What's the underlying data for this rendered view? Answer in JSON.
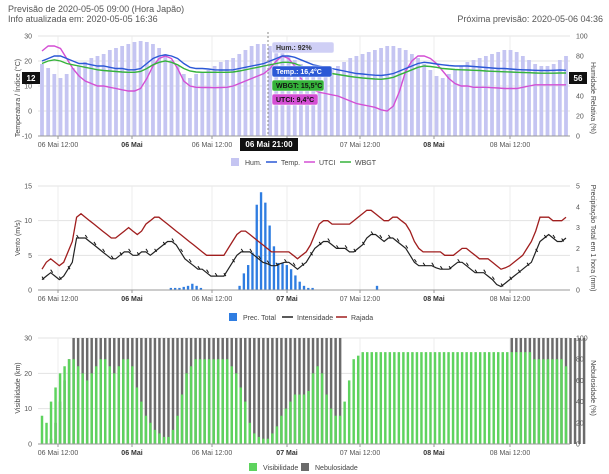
{
  "header": {
    "forecast": "Previsão de 2020-05-05 09:00 (Hora Japão)",
    "updated": "Info atualizada em: 2020-05-05 16:36",
    "next": "Próxima previsão: 2020-05-06 04:36"
  },
  "x_ticks": [
    "06 Mai 12:00",
    "06 Mai",
    "06 Mai 12:00",
    "07 Mai",
    "07 Mai 12:00",
    "08 Mai",
    "08 Mai 12:00"
  ],
  "x_ticks_bold": [
    false,
    true,
    false,
    true,
    false,
    true,
    false
  ],
  "colors": {
    "humidity": "#c5c5f2",
    "temp": "#2b58d6",
    "utci": "#d44fd4",
    "wbgt": "#35b33a",
    "precip": "#2f7de1",
    "intensity": "#222222",
    "gust": "#a01e1e",
    "visibility": "#5ed35e",
    "cloud": "#6b6b6b"
  },
  "chart_data": [
    {
      "type": "line",
      "ylabel": "Temperatura / Índice (°C)",
      "y2label": "Humidade Relativa (%)",
      "ylim": [
        -10,
        30
      ],
      "y2lim": [
        0,
        100
      ],
      "yticks": [
        -10,
        0,
        10,
        20,
        30
      ],
      "y2ticks": [
        0,
        20,
        40,
        60,
        80,
        100
      ],
      "legend": [
        "Hum.",
        "Temp.",
        "UTCI",
        "WBGT"
      ],
      "left_marker": "12",
      "right_marker": "56",
      "tooltip": {
        "time": "06 Mai 21:00",
        "hum": "Hum.: 92%",
        "temp": "Temp.: 16,4°C",
        "wbgt": "WBGT: 15,5°C",
        "utci": "UTCI: 9,4°C"
      },
      "humidity": [
        72,
        68,
        62,
        58,
        62,
        68,
        70,
        74,
        78,
        80,
        82,
        86,
        88,
        90,
        92,
        94,
        95,
        94,
        92,
        88,
        82,
        76,
        70,
        62,
        58,
        62,
        64,
        66,
        70,
        74,
        76,
        78,
        82,
        86,
        90,
        92,
        92,
        90,
        88,
        84,
        80,
        76,
        72,
        68,
        64,
        62,
        64,
        66,
        70,
        74,
        78,
        80,
        82,
        84,
        86,
        88,
        90,
        90,
        88,
        86,
        82,
        78,
        72,
        66,
        60,
        58,
        62,
        66,
        70,
        74,
        76,
        78,
        80,
        82,
        84,
        86,
        86,
        84,
        80,
        76,
        72,
        70,
        70,
        72,
        76,
        80
      ],
      "temp": [
        20,
        21,
        22,
        22,
        21,
        20,
        19,
        19,
        18.5,
        18,
        18,
        17.5,
        17,
        17,
        16.5,
        16.5,
        17,
        19,
        21,
        22,
        22.5,
        22,
        21,
        19,
        17.5,
        17,
        17,
        16.8,
        16.5,
        16.4,
        16.4,
        16.5,
        17,
        17.5,
        18,
        18.5,
        19,
        20,
        21,
        22,
        22,
        21.5,
        20.5,
        19.5,
        18.5,
        18,
        17.5,
        17,
        16.5,
        16,
        15.5,
        15,
        14.8,
        14.5,
        14.3,
        14.2,
        14.5,
        15,
        16,
        17,
        18,
        19,
        19.5,
        19.2,
        18.8,
        18.5,
        18.2,
        18,
        18,
        18,
        17.8,
        17.6,
        17.4,
        17.2,
        17,
        17,
        16.8,
        16.6,
        16.5,
        16.4,
        16.3,
        16.2,
        16.2,
        16.3,
        16.4,
        16.3
      ],
      "utci": [
        24,
        26,
        26,
        25,
        21,
        17,
        14,
        12,
        11,
        10,
        10,
        9.5,
        9,
        8.5,
        8,
        8,
        9,
        13,
        18,
        21,
        22,
        21,
        17,
        12,
        10,
        9.5,
        9.4,
        9.4,
        9.3,
        9.4,
        9.5,
        10,
        11,
        12,
        13,
        14,
        15,
        17,
        20,
        22,
        21,
        18,
        13,
        10,
        8.5,
        7.5,
        7,
        6.5,
        6,
        5,
        4,
        3,
        2.5,
        2,
        1.5,
        0.5,
        0,
        2,
        8,
        16,
        20,
        22,
        22,
        21,
        19,
        16,
        13,
        11,
        10,
        10,
        9.5,
        9.5,
        9.5,
        9.3,
        9.2,
        9,
        9,
        9,
        9.5,
        10,
        10.5,
        10.5,
        10.5,
        10.5,
        10.5,
        10.5
      ],
      "wbgt": [
        19,
        20,
        20.5,
        20,
        19,
        18.5,
        18,
        17.5,
        17,
        16.5,
        16.2,
        16,
        15.8,
        15.6,
        15.5,
        15.5,
        15.8,
        17,
        18.5,
        19.5,
        20,
        19.5,
        18.5,
        17,
        16,
        15.6,
        15.5,
        15.5,
        15.5,
        15.5,
        15.5,
        15.6,
        16,
        16.5,
        17,
        17.5,
        18,
        18.5,
        19,
        19.5,
        19.5,
        19,
        18,
        17,
        16.3,
        15.8,
        15.4,
        15,
        14.6,
        14.2,
        13.8,
        13.5,
        13.2,
        13,
        12.8,
        12.7,
        13,
        13.5,
        14.5,
        15.5,
        16.5,
        17.5,
        18,
        17.8,
        17.5,
        17,
        16.8,
        16.6,
        16.5,
        16.4,
        16.3,
        16.2,
        16,
        15.9,
        15.8,
        15.7,
        15.6,
        15.5,
        15.4,
        15.3,
        15.2,
        15.1,
        15.1,
        15.1,
        15.2,
        15.2
      ]
    },
    {
      "type": "line",
      "ylabel": "Vento (m/s)",
      "y2label": "Precipitação Total em 1 hora (mm)",
      "ylim": [
        0,
        15
      ],
      "y2lim": [
        0,
        5
      ],
      "yticks": [
        0,
        5,
        10,
        15
      ],
      "y2ticks": [
        0,
        1,
        2,
        3,
        4,
        5
      ],
      "legend": [
        "Prec. Total",
        "Intensidade",
        "Rajada"
      ],
      "precip": [
        0,
        0,
        0,
        0,
        0,
        0,
        0,
        0,
        0,
        0,
        0,
        0,
        0,
        0,
        0,
        0,
        0,
        0,
        0,
        0,
        0,
        0,
        0,
        0,
        0,
        0,
        0,
        0,
        0,
        0,
        0.1,
        0.1,
        0.1,
        0.15,
        0.2,
        0.3,
        0.2,
        0.1,
        0,
        0,
        0,
        0,
        0,
        0,
        0,
        0,
        0.2,
        0.8,
        1.2,
        1.8,
        4.1,
        4.7,
        4.2,
        3.1,
        2.1,
        1.3,
        1.3,
        1.2,
        1.0,
        0.7,
        0.4,
        0.2,
        0.1,
        0.1,
        0,
        0,
        0,
        0,
        0,
        0,
        0,
        0,
        0,
        0,
        0,
        0,
        0,
        0,
        0.2,
        0,
        0,
        0,
        0,
        0,
        0,
        0,
        0,
        0,
        0,
        0,
        0,
        0,
        0,
        0,
        0,
        0,
        0,
        0,
        0,
        0,
        0,
        0,
        0,
        0,
        0,
        0,
        0,
        0,
        0,
        0,
        0,
        0,
        0,
        0,
        0,
        0,
        0,
        0,
        0,
        0,
        0,
        0,
        0
      ],
      "intensity": [
        1.5,
        2,
        2.5,
        2,
        1.5,
        2,
        3,
        4,
        7.5,
        7.5,
        7.5,
        7,
        6.5,
        6,
        5.5,
        5,
        4.5,
        4.5,
        5,
        5.5,
        5.5,
        5,
        5,
        5.5,
        5.5,
        5,
        5.5,
        6,
        6.5,
        7,
        7,
        6.5,
        5.5,
        4.5,
        4,
        3.5,
        3,
        3,
        2.5,
        2,
        2,
        2,
        2,
        3,
        4,
        5,
        5.5,
        5.5,
        5.5,
        5,
        4.5,
        4,
        3.8,
        3.5,
        3.5,
        3.8,
        4,
        4,
        3.5,
        3,
        3.5,
        4,
        5,
        6,
        6.5,
        7,
        7,
        6.5,
        6,
        6,
        6,
        5.5,
        5.5,
        6,
        6.5,
        7.5,
        8,
        8,
        7.5,
        7,
        7.5,
        7.5,
        7,
        6.5,
        6,
        5,
        4,
        3.5,
        3.5,
        3.5,
        3.5,
        3.2,
        3,
        3,
        3,
        3.5,
        4,
        4,
        3.5,
        3,
        2.5,
        2.5,
        2.5,
        2,
        1.5,
        0.8,
        0.5,
        1,
        1.5,
        2,
        2.5,
        3,
        3.5,
        4,
        5.5,
        7,
        7.5,
        8,
        7.5,
        7,
        7,
        7.5
      ],
      "gust": [
        3,
        4,
        4.5,
        4,
        3.5,
        4,
        5.5,
        7,
        10.5,
        11,
        10.5,
        10,
        9.5,
        9,
        8.5,
        8,
        7.5,
        7.5,
        8,
        8.5,
        9,
        8.5,
        8,
        8.5,
        9.5,
        10,
        10.5,
        10.5,
        10,
        9.5,
        9,
        8.5,
        8,
        7.5,
        7,
        6.5,
        6,
        5.5,
        5,
        5,
        5,
        5,
        5,
        6,
        7,
        8,
        8.5,
        8.5,
        8,
        7.5,
        7,
        6.5,
        6,
        5.5,
        5.5,
        5.5,
        5.5,
        5.5,
        5,
        4.5,
        5,
        5.5,
        6.5,
        8,
        9.5,
        10,
        10,
        9.5,
        9.5,
        9.5,
        9.5,
        9.5,
        10,
        10.5,
        11,
        11.5,
        11.5,
        11,
        10.5,
        10,
        10,
        10.5,
        10.5,
        10,
        9.5,
        8.5,
        7,
        6,
        5.5,
        5.5,
        5.5,
        5.5,
        5.5,
        5,
        5,
        5,
        5.5,
        6,
        6,
        5.5,
        5,
        4.5,
        4.5,
        4.5,
        4,
        3.5,
        3,
        3.2,
        3.5,
        4,
        4.5,
        5,
        6,
        7,
        8.5,
        10.5,
        10.5,
        10.5,
        10,
        10,
        10,
        10.5
      ]
    },
    {
      "type": "bar",
      "ylabel": "Visibilidade (km)",
      "y2label": "Nebulosidade (%)",
      "ylim": [
        0,
        30
      ],
      "y2lim": [
        0,
        100
      ],
      "yticks": [
        0,
        10,
        20,
        30
      ],
      "y2ticks": [
        0,
        20,
        40,
        60,
        80,
        100
      ],
      "legend": [
        "Visibilidade",
        "Nebulosidade"
      ],
      "visibility": [
        8,
        6,
        12,
        16,
        20,
        22,
        24,
        24,
        22,
        20,
        18,
        20,
        22,
        24,
        24,
        22,
        20,
        22,
        24,
        24,
        22,
        16,
        12,
        8,
        6,
        4,
        3,
        2,
        2,
        4,
        8,
        14,
        20,
        22,
        24,
        24,
        24,
        24,
        24,
        24,
        24,
        24,
        22,
        20,
        16,
        12,
        6,
        3,
        2,
        1.5,
        1.5,
        3,
        5,
        8,
        10,
        12,
        14,
        14,
        14,
        15,
        20,
        22,
        20,
        14,
        10,
        8,
        8,
        12,
        18,
        24,
        25,
        26,
        26,
        26,
        26,
        26,
        26,
        26,
        26,
        26,
        26,
        26,
        26,
        26,
        26,
        26,
        26,
        26,
        26,
        26,
        26,
        26,
        26,
        26,
        26,
        26,
        26,
        26,
        26,
        26,
        26,
        26,
        26,
        26,
        26,
        26,
        26,
        26,
        26,
        24,
        24,
        24,
        24,
        24,
        24,
        24,
        22
      ],
      "cloud": [
        0,
        0,
        5,
        20,
        40,
        60,
        80,
        100,
        100,
        100,
        100,
        100,
        100,
        100,
        100,
        100,
        100,
        100,
        100,
        100,
        100,
        100,
        100,
        100,
        100,
        100,
        100,
        100,
        100,
        100,
        100,
        100,
        100,
        100,
        100,
        100,
        100,
        100,
        100,
        100,
        100,
        100,
        100,
        100,
        100,
        100,
        100,
        100,
        100,
        100,
        100,
        100,
        100,
        100,
        100,
        100,
        100,
        100,
        100,
        100,
        100,
        100,
        100,
        100,
        100,
        100,
        100,
        0,
        0,
        0,
        0,
        0,
        0,
        0,
        0,
        0,
        0,
        0,
        0,
        0,
        0,
        0,
        0,
        0,
        0,
        0,
        0,
        0,
        0,
        0,
        0,
        0,
        0,
        0,
        0,
        0,
        0,
        0,
        0,
        0,
        0,
        0,
        60,
        80,
        100,
        100,
        100,
        100,
        100,
        100,
        100,
        100,
        100,
        100,
        100,
        100,
        100,
        100,
        100,
        100,
        100
      ]
    }
  ]
}
